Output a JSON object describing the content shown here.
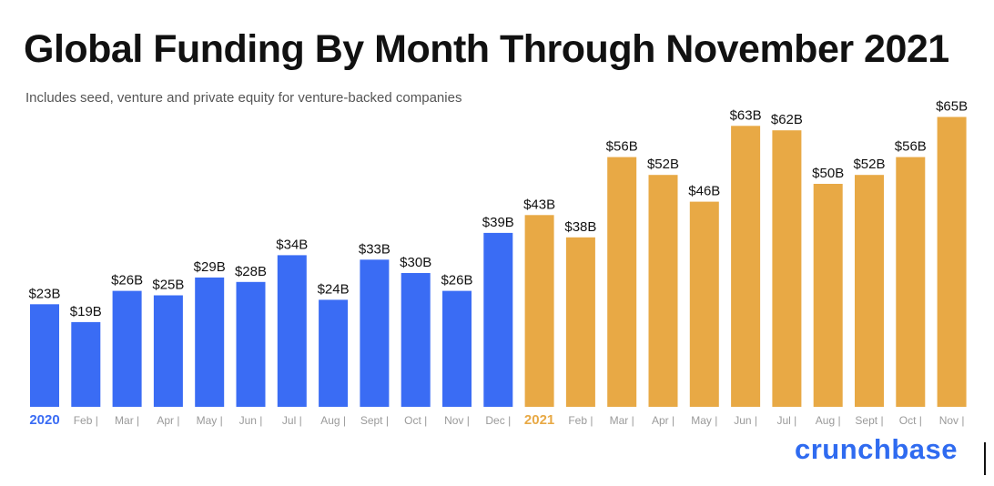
{
  "title": "Global Funding By Month Through November 2021",
  "subtitle": "Includes seed, venture and private equity for venture-backed companies",
  "logo_text": "crunchbase",
  "colors": {
    "series_2020": "#3a6cf4",
    "series_2021": "#e8a945",
    "label_text": "#111111",
    "tick_text": "#9a9a9a",
    "logo": "#2f6bf0"
  },
  "chart_data": {
    "type": "bar",
    "title": "Global Funding By Month Through November 2021",
    "subtitle": "Includes seed, venture and private equity for venture-backed companies",
    "xlabel": "",
    "ylabel": "",
    "unit": "B",
    "ylim": [
      0,
      65
    ],
    "grid": false,
    "legend": "none",
    "categories": [
      "2020 Jan",
      "Feb",
      "Mar",
      "Apr",
      "May",
      "Jun",
      "Jul",
      "Aug",
      "Sept",
      "Oct",
      "Nov",
      "Dec",
      "2021 Jan",
      "Feb",
      "Mar",
      "Apr",
      "May",
      "Jun",
      "Jul",
      "Aug",
      "Sept",
      "Oct",
      "Nov"
    ],
    "tick_labels": [
      "2020",
      "Feb |",
      "Mar |",
      "Apr |",
      "May |",
      "Jun |",
      "Jul |",
      "Aug |",
      "Sept |",
      "Oct |",
      "Nov |",
      "Dec |",
      "2021",
      "Feb |",
      "Mar |",
      "Apr |",
      "May |",
      "Jun |",
      "Jul |",
      "Aug |",
      "Sept |",
      "Oct |",
      "Nov |"
    ],
    "year_ticks": [
      0,
      12
    ],
    "values": [
      23,
      19,
      26,
      25,
      29,
      28,
      34,
      24,
      33,
      30,
      26,
      39,
      43,
      38,
      56,
      52,
      46,
      63,
      62,
      50,
      52,
      56,
      65
    ],
    "data_labels": [
      "$23B",
      "$19B",
      "$26B",
      "$25B",
      "$29B",
      "$28B",
      "$34B",
      "$24B",
      "$33B",
      "$30B",
      "$26B",
      "$39B",
      "$43B",
      "$38B",
      "$56B",
      "$52B",
      "$46B",
      "$63B",
      "$62B",
      "$50B",
      "$52B",
      "$56B",
      "$65B"
    ],
    "series_index": [
      0,
      0,
      0,
      0,
      0,
      0,
      0,
      0,
      0,
      0,
      0,
      0,
      1,
      1,
      1,
      1,
      1,
      1,
      1,
      1,
      1,
      1,
      1
    ],
    "series": [
      {
        "name": "2020",
        "color": "#3a6cf4"
      },
      {
        "name": "2021",
        "color": "#e8a945"
      }
    ]
  }
}
